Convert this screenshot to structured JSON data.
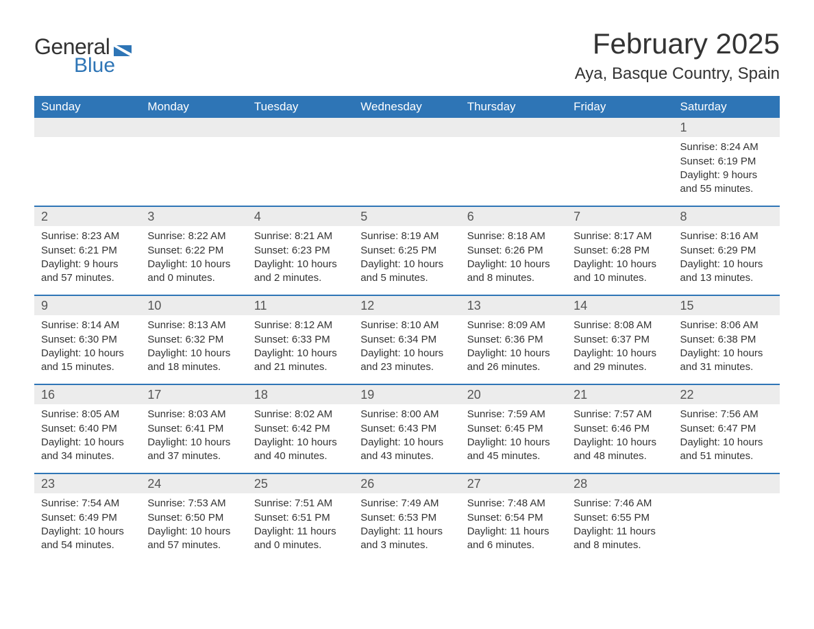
{
  "logo": {
    "text1": "General",
    "text2": "Blue",
    "icon_color": "#2e75b6"
  },
  "header": {
    "month": "February 2025",
    "location": "Aya, Basque Country, Spain"
  },
  "colors": {
    "header_bg": "#2e75b6",
    "day_row_bg": "#ececec",
    "text": "#333333"
  },
  "weekdays": [
    "Sunday",
    "Monday",
    "Tuesday",
    "Wednesday",
    "Thursday",
    "Friday",
    "Saturday"
  ],
  "weeks": [
    [
      {},
      {},
      {},
      {},
      {},
      {},
      {
        "day": "1",
        "sunrise": "Sunrise: 8:24 AM",
        "sunset": "Sunset: 6:19 PM",
        "daylight": "Daylight: 9 hours and 55 minutes."
      }
    ],
    [
      {
        "day": "2",
        "sunrise": "Sunrise: 8:23 AM",
        "sunset": "Sunset: 6:21 PM",
        "daylight": "Daylight: 9 hours and 57 minutes."
      },
      {
        "day": "3",
        "sunrise": "Sunrise: 8:22 AM",
        "sunset": "Sunset: 6:22 PM",
        "daylight": "Daylight: 10 hours and 0 minutes."
      },
      {
        "day": "4",
        "sunrise": "Sunrise: 8:21 AM",
        "sunset": "Sunset: 6:23 PM",
        "daylight": "Daylight: 10 hours and 2 minutes."
      },
      {
        "day": "5",
        "sunrise": "Sunrise: 8:19 AM",
        "sunset": "Sunset: 6:25 PM",
        "daylight": "Daylight: 10 hours and 5 minutes."
      },
      {
        "day": "6",
        "sunrise": "Sunrise: 8:18 AM",
        "sunset": "Sunset: 6:26 PM",
        "daylight": "Daylight: 10 hours and 8 minutes."
      },
      {
        "day": "7",
        "sunrise": "Sunrise: 8:17 AM",
        "sunset": "Sunset: 6:28 PM",
        "daylight": "Daylight: 10 hours and 10 minutes."
      },
      {
        "day": "8",
        "sunrise": "Sunrise: 8:16 AM",
        "sunset": "Sunset: 6:29 PM",
        "daylight": "Daylight: 10 hours and 13 minutes."
      }
    ],
    [
      {
        "day": "9",
        "sunrise": "Sunrise: 8:14 AM",
        "sunset": "Sunset: 6:30 PM",
        "daylight": "Daylight: 10 hours and 15 minutes."
      },
      {
        "day": "10",
        "sunrise": "Sunrise: 8:13 AM",
        "sunset": "Sunset: 6:32 PM",
        "daylight": "Daylight: 10 hours and 18 minutes."
      },
      {
        "day": "11",
        "sunrise": "Sunrise: 8:12 AM",
        "sunset": "Sunset: 6:33 PM",
        "daylight": "Daylight: 10 hours and 21 minutes."
      },
      {
        "day": "12",
        "sunrise": "Sunrise: 8:10 AM",
        "sunset": "Sunset: 6:34 PM",
        "daylight": "Daylight: 10 hours and 23 minutes."
      },
      {
        "day": "13",
        "sunrise": "Sunrise: 8:09 AM",
        "sunset": "Sunset: 6:36 PM",
        "daylight": "Daylight: 10 hours and 26 minutes."
      },
      {
        "day": "14",
        "sunrise": "Sunrise: 8:08 AM",
        "sunset": "Sunset: 6:37 PM",
        "daylight": "Daylight: 10 hours and 29 minutes."
      },
      {
        "day": "15",
        "sunrise": "Sunrise: 8:06 AM",
        "sunset": "Sunset: 6:38 PM",
        "daylight": "Daylight: 10 hours and 31 minutes."
      }
    ],
    [
      {
        "day": "16",
        "sunrise": "Sunrise: 8:05 AM",
        "sunset": "Sunset: 6:40 PM",
        "daylight": "Daylight: 10 hours and 34 minutes."
      },
      {
        "day": "17",
        "sunrise": "Sunrise: 8:03 AM",
        "sunset": "Sunset: 6:41 PM",
        "daylight": "Daylight: 10 hours and 37 minutes."
      },
      {
        "day": "18",
        "sunrise": "Sunrise: 8:02 AM",
        "sunset": "Sunset: 6:42 PM",
        "daylight": "Daylight: 10 hours and 40 minutes."
      },
      {
        "day": "19",
        "sunrise": "Sunrise: 8:00 AM",
        "sunset": "Sunset: 6:43 PM",
        "daylight": "Daylight: 10 hours and 43 minutes."
      },
      {
        "day": "20",
        "sunrise": "Sunrise: 7:59 AM",
        "sunset": "Sunset: 6:45 PM",
        "daylight": "Daylight: 10 hours and 45 minutes."
      },
      {
        "day": "21",
        "sunrise": "Sunrise: 7:57 AM",
        "sunset": "Sunset: 6:46 PM",
        "daylight": "Daylight: 10 hours and 48 minutes."
      },
      {
        "day": "22",
        "sunrise": "Sunrise: 7:56 AM",
        "sunset": "Sunset: 6:47 PM",
        "daylight": "Daylight: 10 hours and 51 minutes."
      }
    ],
    [
      {
        "day": "23",
        "sunrise": "Sunrise: 7:54 AM",
        "sunset": "Sunset: 6:49 PM",
        "daylight": "Daylight: 10 hours and 54 minutes."
      },
      {
        "day": "24",
        "sunrise": "Sunrise: 7:53 AM",
        "sunset": "Sunset: 6:50 PM",
        "daylight": "Daylight: 10 hours and 57 minutes."
      },
      {
        "day": "25",
        "sunrise": "Sunrise: 7:51 AM",
        "sunset": "Sunset: 6:51 PM",
        "daylight": "Daylight: 11 hours and 0 minutes."
      },
      {
        "day": "26",
        "sunrise": "Sunrise: 7:49 AM",
        "sunset": "Sunset: 6:53 PM",
        "daylight": "Daylight: 11 hours and 3 minutes."
      },
      {
        "day": "27",
        "sunrise": "Sunrise: 7:48 AM",
        "sunset": "Sunset: 6:54 PM",
        "daylight": "Daylight: 11 hours and 6 minutes."
      },
      {
        "day": "28",
        "sunrise": "Sunrise: 7:46 AM",
        "sunset": "Sunset: 6:55 PM",
        "daylight": "Daylight: 11 hours and 8 minutes."
      },
      {}
    ]
  ]
}
